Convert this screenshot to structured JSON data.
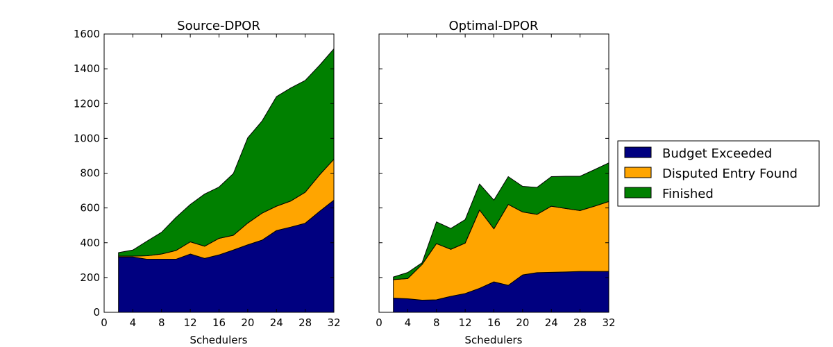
{
  "chart_data": [
    {
      "type": "area",
      "stacked": true,
      "title": "Source-DPOR",
      "xlabel": "Schedulers",
      "ylabel": "",
      "xlim": [
        0,
        32
      ],
      "ylim": [
        0,
        1600
      ],
      "xticks": [
        0,
        4,
        8,
        12,
        16,
        20,
        24,
        28,
        32
      ],
      "yticks": [
        0,
        200,
        400,
        600,
        800,
        1000,
        1200,
        1400,
        1600
      ],
      "ytick_labels_visible": true,
      "x": [
        2,
        4,
        6,
        8,
        10,
        12,
        14,
        16,
        18,
        20,
        22,
        24,
        26,
        28,
        30,
        32
      ],
      "series": [
        {
          "name": "Budget Exceeded",
          "color": "#000080",
          "values": [
            318,
            318,
            305,
            305,
            305,
            335,
            310,
            330,
            358,
            388,
            415,
            470,
            490,
            512,
            580,
            645
          ]
        },
        {
          "name": "Disputed Entry Found",
          "color": "#ffa500",
          "values": [
            5,
            5,
            20,
            30,
            50,
            70,
            70,
            95,
            85,
            125,
            155,
            140,
            150,
            178,
            210,
            235
          ]
        },
        {
          "name": "Finished",
          "color": "#008000",
          "values": [
            20,
            35,
            85,
            125,
            190,
            215,
            300,
            295,
            355,
            490,
            530,
            630,
            650,
            643,
            630,
            635
          ]
        }
      ]
    },
    {
      "type": "area",
      "stacked": true,
      "title": "Optimal-DPOR",
      "xlabel": "Schedulers",
      "ylabel": "",
      "xlim": [
        0,
        32
      ],
      "ylim": [
        0,
        1600
      ],
      "xticks": [
        0,
        4,
        8,
        12,
        16,
        20,
        24,
        28,
        32
      ],
      "yticks": [
        0,
        200,
        400,
        600,
        800,
        1000,
        1200,
        1400,
        1600
      ],
      "ytick_labels_visible": false,
      "x": [
        2,
        4,
        6,
        8,
        10,
        12,
        14,
        16,
        18,
        20,
        22,
        24,
        26,
        28,
        30,
        32
      ],
      "series": [
        {
          "name": "Budget Exceeded",
          "color": "#000080",
          "values": [
            82,
            78,
            70,
            72,
            92,
            108,
            138,
            175,
            155,
            215,
            228,
            230,
            232,
            235,
            235,
            235
          ]
        },
        {
          "name": "Disputed Entry Found",
          "color": "#ffa500",
          "values": [
            106,
            116,
            205,
            323,
            270,
            290,
            450,
            305,
            465,
            362,
            335,
            380,
            365,
            350,
            375,
            402
          ]
        },
        {
          "name": "Finished",
          "color": "#008000",
          "values": [
            15,
            35,
            10,
            125,
            120,
            135,
            150,
            165,
            160,
            147,
            155,
            170,
            185,
            197,
            210,
            222
          ]
        }
      ]
    }
  ],
  "legend": {
    "placement": "right",
    "items": [
      {
        "label": "Budget Exceeded",
        "color": "#000080"
      },
      {
        "label": "Disputed Entry Found",
        "color": "#ffa500"
      },
      {
        "label": "Finished",
        "color": "#008000"
      }
    ]
  }
}
